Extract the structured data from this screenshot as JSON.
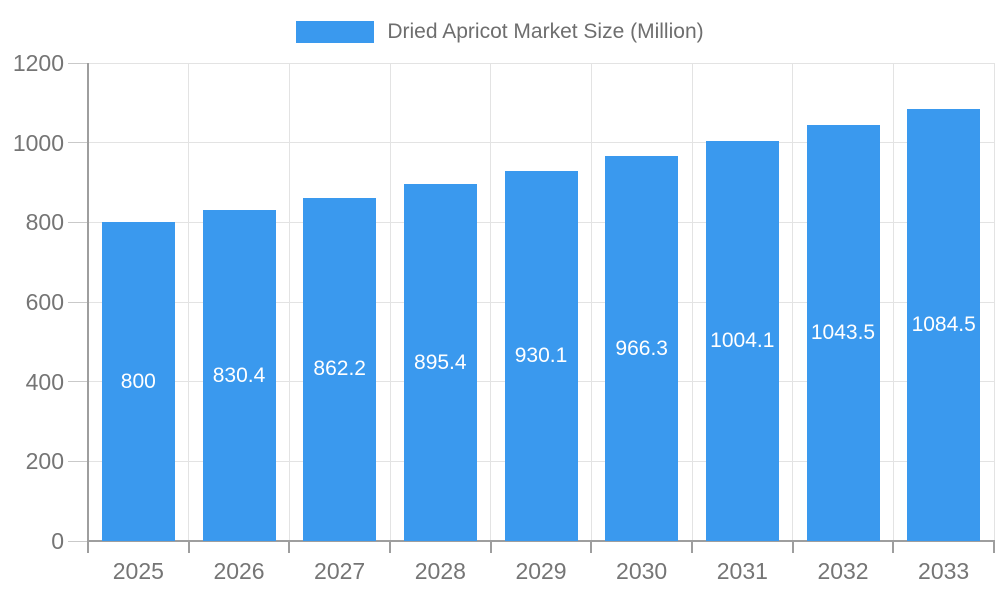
{
  "legend": {
    "label": "Dried Apricot Market Size (Million)"
  },
  "colors": {
    "bar": "#3A99EE",
    "bar_label": "#ffffff",
    "axis_text": "#757575",
    "legend_text": "#6e6e6e",
    "grid": "#e3e3e3",
    "tick": "#c9c9c9",
    "axis_line": "#9e9e9e",
    "background": "#ffffff"
  },
  "chart_data": {
    "type": "bar",
    "title": "Dried Apricot Market Size (Million)",
    "categories": [
      "2025",
      "2026",
      "2027",
      "2028",
      "2029",
      "2030",
      "2031",
      "2032",
      "2033"
    ],
    "values": [
      800,
      830.4,
      862.2,
      895.4,
      930.1,
      966.3,
      1004.1,
      1043.5,
      1084.5
    ],
    "value_labels": [
      "800",
      "830.4",
      "862.2",
      "895.4",
      "930.1",
      "966.3",
      "1004.1",
      "1043.5",
      "1084.5"
    ],
    "series_name": "Dried Apricot Market Size (Million)",
    "xlabel": "",
    "ylabel": "",
    "ylim": [
      0,
      1200
    ],
    "yticks": [
      0,
      200,
      400,
      600,
      800,
      1000,
      1200
    ],
    "ytick_labels": [
      "0",
      "200",
      "400",
      "600",
      "800",
      "1000",
      "1200"
    ],
    "grid": true,
    "legend_position": "top",
    "bar_label_position": "center"
  }
}
